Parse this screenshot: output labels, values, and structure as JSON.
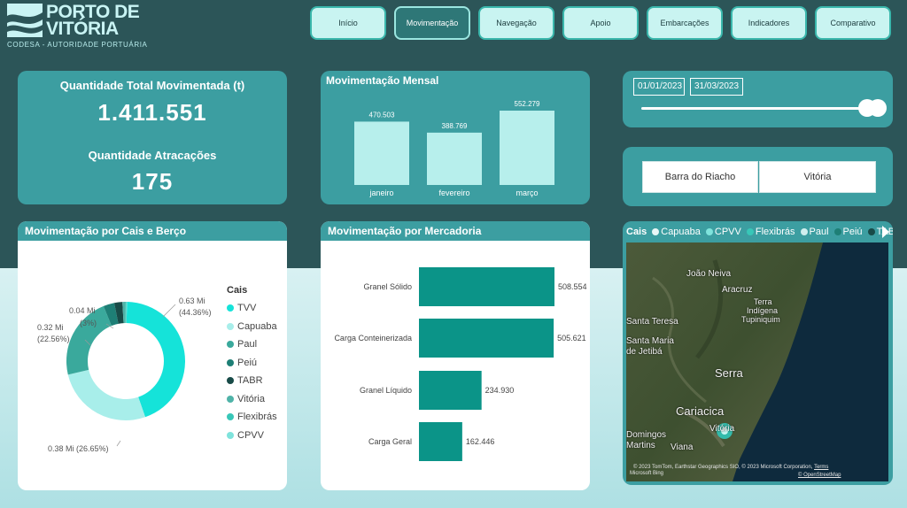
{
  "brand": {
    "name_line1": "PORTO DE",
    "name_line2": "VITÓRIA",
    "subtitle": "CODESA - AUTORIDADE PORTUÁRIA"
  },
  "nav": [
    {
      "label": "Início",
      "active": false
    },
    {
      "label": "Movimentação",
      "active": true
    },
    {
      "label": "Navegação",
      "active": false
    },
    {
      "label": "Apoio",
      "active": false
    },
    {
      "label": "Embarcações",
      "active": false
    },
    {
      "label": "Indicadores",
      "active": false
    },
    {
      "label": "Comparativo",
      "active": false
    }
  ],
  "kpis": {
    "total_label": "Quantidade Total Movimentada (t)",
    "total_value": "1.411.551",
    "atracacoes_label": "Quantidade Atracações",
    "atracacoes_value": "175"
  },
  "date_filter": {
    "start": "01/01/2023",
    "end": "31/03/2023"
  },
  "segment": {
    "options": [
      "Barra do Riacho",
      "Vitória"
    ]
  },
  "monthly": {
    "title": "Movimentação Mensal",
    "chart_data": {
      "type": "bar",
      "categories": [
        "janeiro",
        "fevereiro",
        "março"
      ],
      "values": [
        470503,
        388769,
        552279
      ],
      "value_labels": [
        "470.503",
        "388.769",
        "552.279"
      ],
      "color": "#b7efec"
    }
  },
  "cais": {
    "title": "Movimentação por Cais e Berço",
    "legend_title": "Cais",
    "legend": [
      {
        "name": "TVV",
        "color": "#15e3d9"
      },
      {
        "name": "Capuaba",
        "color": "#a8eeea"
      },
      {
        "name": "Paul",
        "color": "#3aa99c"
      },
      {
        "name": "Peiú",
        "color": "#1e7f76"
      },
      {
        "name": "TABR",
        "color": "#184b48"
      },
      {
        "name": "Vitória",
        "color": "#4fb3a8"
      },
      {
        "name": "Flexibrás",
        "color": "#38c7b8"
      },
      {
        "name": "CPVV",
        "color": "#7fe3dc"
      }
    ],
    "chart_data": {
      "type": "pie",
      "slices": [
        {
          "name": "TVV",
          "value": 44.36,
          "label_value": "0.63 Mi",
          "label_pct": "(44.36%)",
          "color": "#15e3d9"
        },
        {
          "name": "Capuaba",
          "value": 26.65,
          "label_value": "0.38 Mi (26.65%)",
          "label_pct": "",
          "color": "#a8eeea"
        },
        {
          "name": "Paul",
          "value": 22.56,
          "label_value": "0.32 Mi",
          "label_pct": "(22.56%)",
          "color": "#3aa99c"
        },
        {
          "name": "Peiú",
          "value": 3.0,
          "label_value": "0.04 Mi",
          "label_pct": "(3%)",
          "color": "#1e7f76"
        },
        {
          "name": "TABR",
          "value": 2.2,
          "label_value": "",
          "label_pct": "",
          "color": "#184b48"
        },
        {
          "name": "Vitória",
          "value": 0.8,
          "label_value": "",
          "label_pct": "",
          "color": "#4fb3a8"
        },
        {
          "name": "Flexibrás",
          "value": 0.3,
          "label_value": "",
          "label_pct": "",
          "color": "#38c7b8"
        },
        {
          "name": "CPVV",
          "value": 0.13,
          "label_value": "",
          "label_pct": "",
          "color": "#7fe3dc"
        }
      ]
    }
  },
  "mercadoria": {
    "title": "Movimentação por Mercadoria",
    "chart_data": {
      "type": "bar",
      "orientation": "horizontal",
      "categories": [
        "Granel Sólido",
        "Carga Conteinerizada",
        "Granel Líquido",
        "Carga Geral"
      ],
      "values": [
        508554,
        505621,
        234930,
        162446
      ],
      "value_labels": [
        "508.554",
        "505.621",
        "234.930",
        "162.446"
      ],
      "color": "#0b9488"
    }
  },
  "map": {
    "legend_title": "Cais",
    "legend": [
      {
        "name": "Capuaba",
        "color": "#e8f6f6"
      },
      {
        "name": "CPVV",
        "color": "#7fe3dc"
      },
      {
        "name": "Flexibrás",
        "color": "#38c7b8"
      },
      {
        "name": "Paul",
        "color": "#cfeeee"
      },
      {
        "name": "Peiú",
        "color": "#1e7f76"
      },
      {
        "name": "TABR",
        "color": "#184b48"
      }
    ],
    "places": [
      "João Neiva",
      "Aracruz",
      "Terra",
      "Indígena",
      "Tupiniquim",
      "Santa Teresa",
      "Santa Maria",
      "de Jetibá",
      "Serra",
      "Cariacica",
      "Vitória",
      "Domingos",
      "Martins",
      "Viana"
    ],
    "attribution": "© 2023 TomTom, Earthstar Geographics SIO, © 2023 Microsoft Corporation,",
    "attribution_link1": "Terms",
    "attribution_link2": "© OpenStreetMap",
    "bing": "Microsoft Bing"
  }
}
